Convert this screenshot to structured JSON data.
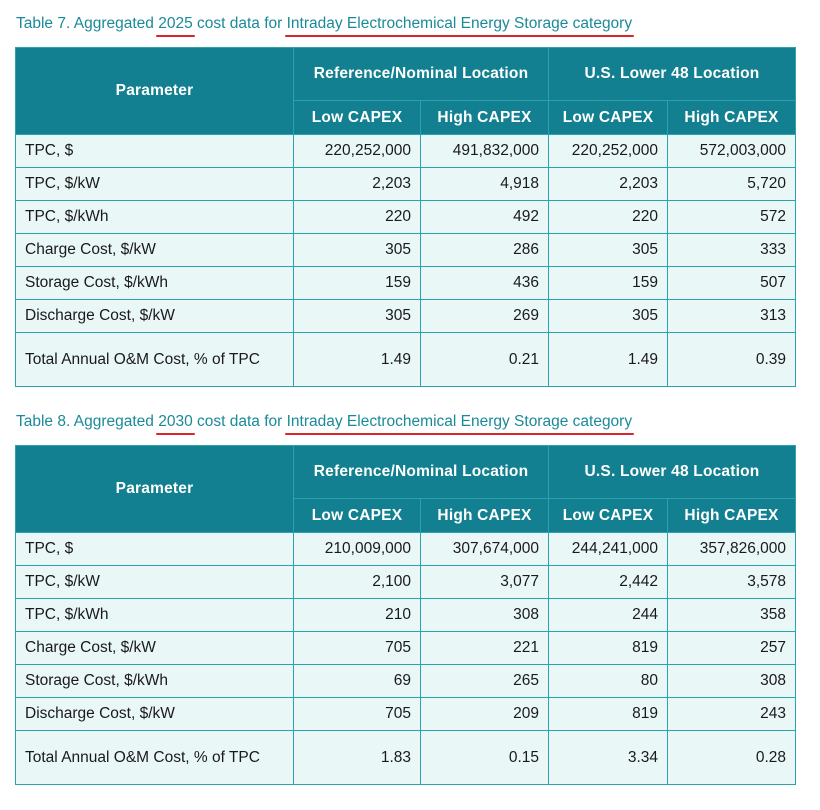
{
  "tables": [
    {
      "caption": {
        "pre": "Table 7. Aggregated ",
        "year": "2025",
        "mid": " cost data for ",
        "category": "Intraday Electrochemical Energy Storage category"
      },
      "header": {
        "parameter": "Parameter",
        "group1": "Reference/Nominal Location",
        "group2": "U.S. Lower 48 Location",
        "sub": [
          "Low CAPEX",
          "High CAPEX",
          "Low CAPEX",
          "High CAPEX"
        ]
      },
      "rows": [
        {
          "label": "TPC, $",
          "values": [
            "220,252,000",
            "491,832,000",
            "220,252,000",
            "572,003,000"
          ]
        },
        {
          "label": "TPC, $/kW",
          "values": [
            "2,203",
            "4,918",
            "2,203",
            "5,720"
          ]
        },
        {
          "label": "TPC, $/kWh",
          "values": [
            "220",
            "492",
            "220",
            "572"
          ]
        },
        {
          "label": "Charge Cost, $/kW",
          "values": [
            "305",
            "286",
            "305",
            "333"
          ]
        },
        {
          "label": "Storage Cost, $/kWh",
          "values": [
            "159",
            "436",
            "159",
            "507"
          ]
        },
        {
          "label": "Discharge Cost, $/kW",
          "values": [
            "305",
            "269",
            "305",
            "313"
          ]
        },
        {
          "label": "Total Annual O&M Cost, % of TPC",
          "values": [
            "1.49",
            "0.21",
            "1.49",
            "0.39"
          ]
        }
      ]
    },
    {
      "caption": {
        "pre": "Table 8. Aggregated ",
        "year": "2030",
        "mid": " cost data for ",
        "category": "Intraday Electrochemical Energy Storage category"
      },
      "header": {
        "parameter": "Parameter",
        "group1": "Reference/Nominal Location",
        "group2": "U.S. Lower 48 Location",
        "sub": [
          "Low CAPEX",
          "High CAPEX",
          "Low CAPEX",
          "High CAPEX"
        ]
      },
      "rows": [
        {
          "label": "TPC, $",
          "values": [
            "210,009,000",
            "307,674,000",
            "244,241,000",
            "357,826,000"
          ]
        },
        {
          "label": "TPC, $/kW",
          "values": [
            "2,100",
            "3,077",
            "2,442",
            "3,578"
          ]
        },
        {
          "label": "TPC, $/kWh",
          "values": [
            "210",
            "308",
            "244",
            "358"
          ]
        },
        {
          "label": "Charge Cost, $/kW",
          "values": [
            "705",
            "221",
            "819",
            "257"
          ]
        },
        {
          "label": "Storage Cost, $/kWh",
          "values": [
            "69",
            "265",
            "80",
            "308"
          ]
        },
        {
          "label": "Discharge Cost, $/kW",
          "values": [
            "705",
            "209",
            "819",
            "243"
          ]
        },
        {
          "label": "Total Annual O&M Cost, % of TPC",
          "values": [
            "1.83",
            "0.15",
            "3.34",
            "0.28"
          ]
        }
      ]
    }
  ]
}
